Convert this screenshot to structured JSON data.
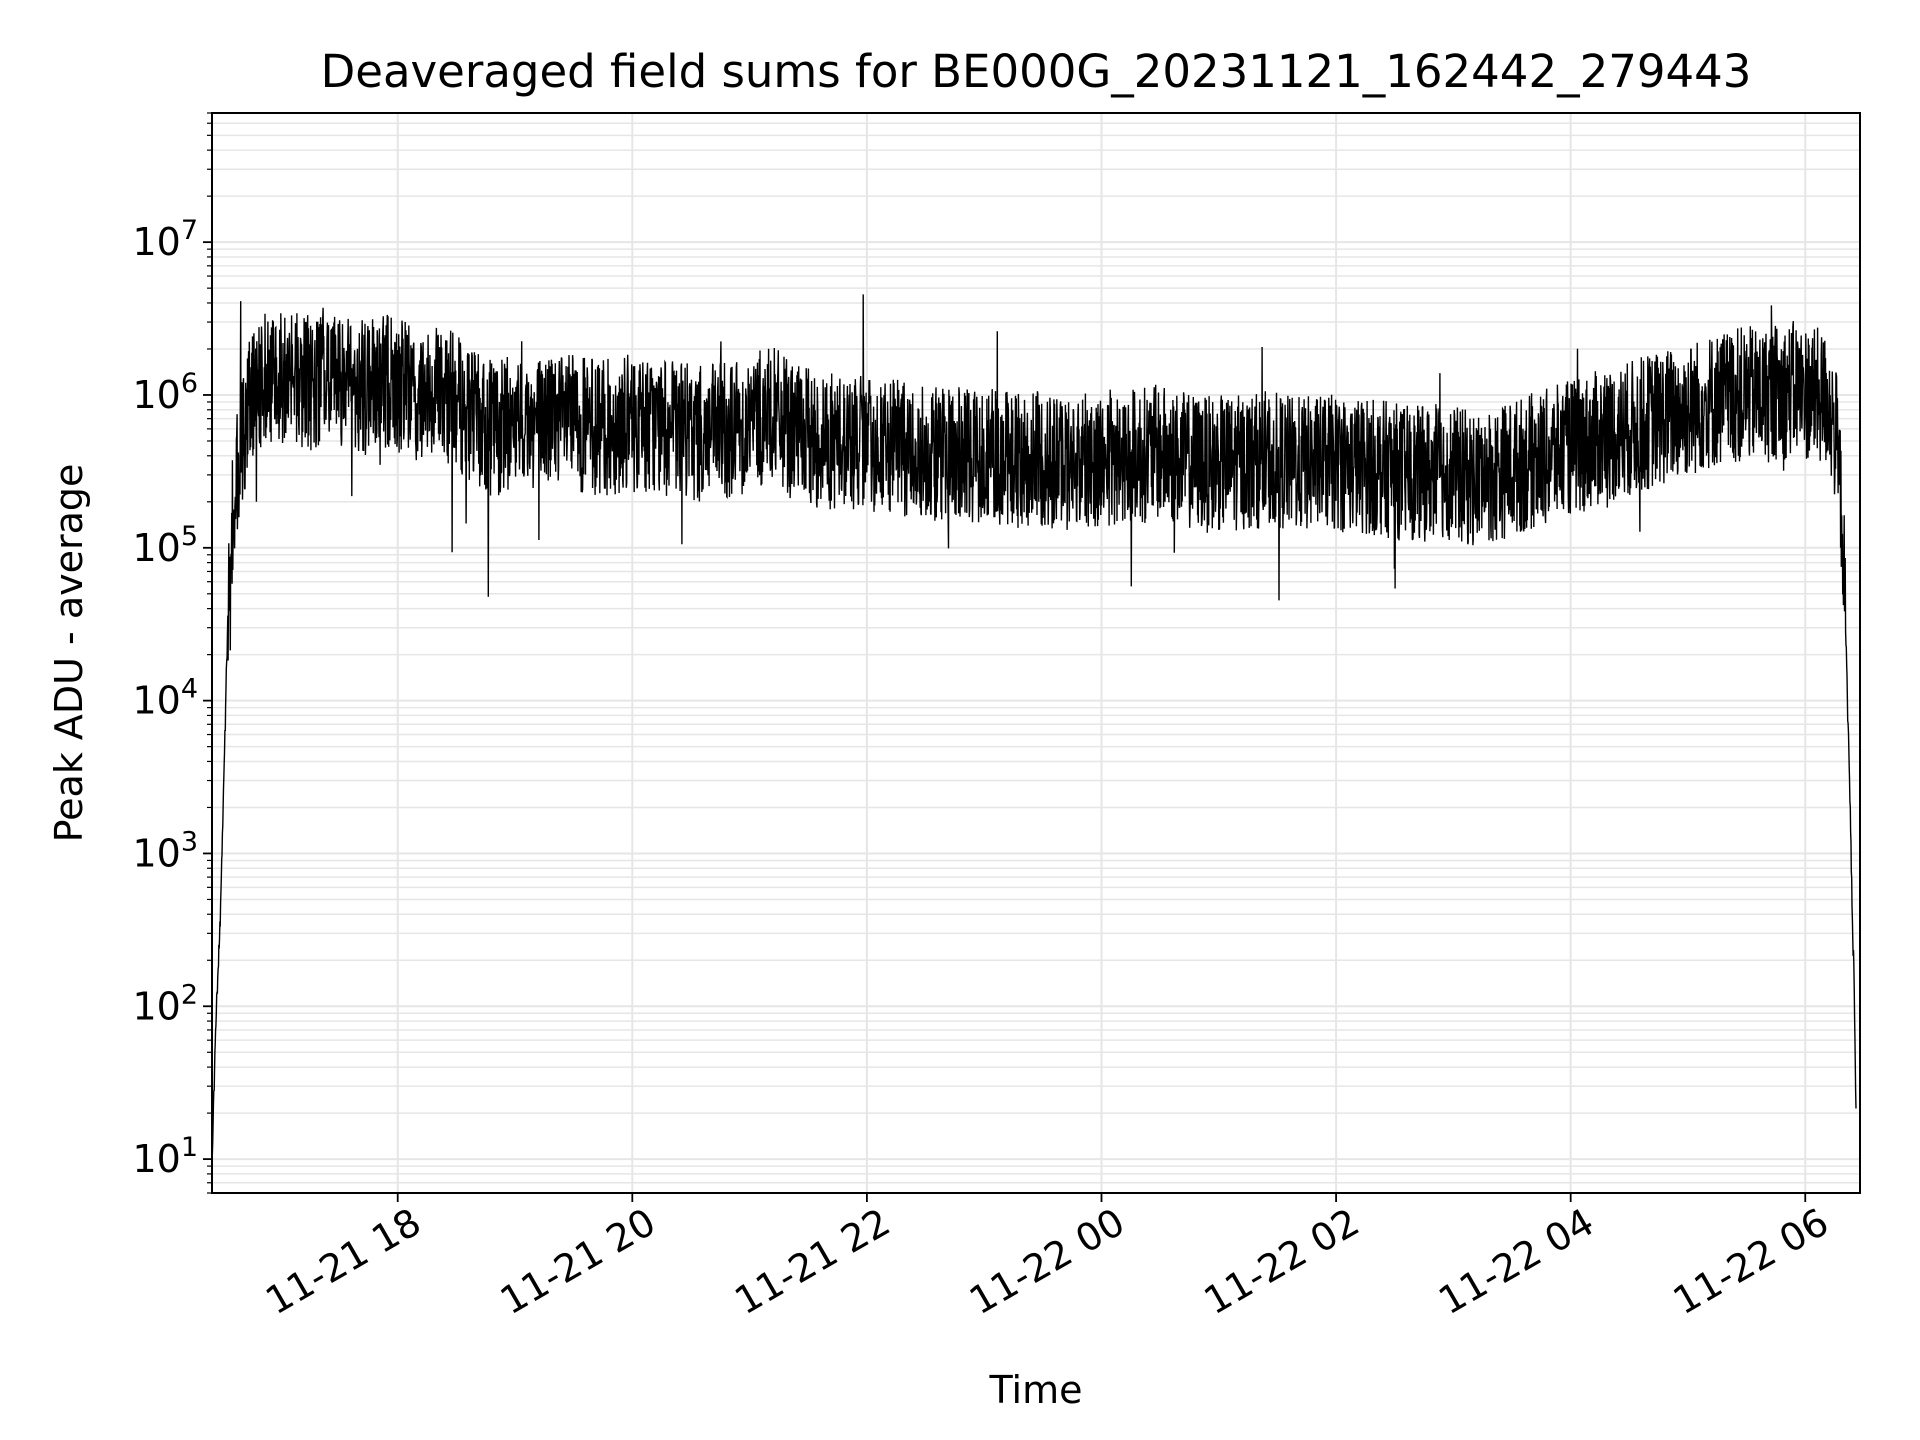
{
  "chart_data": {
    "type": "line",
    "title": "Deaveraged field sums for BE000G_20231121_162442_279443",
    "xlabel": "Time",
    "ylabel": "Peak ADU - average",
    "yscale": "log",
    "ylim": [
      6,
      70000000
    ],
    "xlim": [
      "2023-11-21 16:25",
      "2023-11-22 06:28"
    ],
    "grid": true,
    "line_color": "#000000",
    "grid_color": "#e6e6e6",
    "x_ticks": [
      {
        "t": "2023-11-21 18:00",
        "label": "11-21 18"
      },
      {
        "t": "2023-11-21 20:00",
        "label": "11-21 20"
      },
      {
        "t": "2023-11-21 22:00",
        "label": "11-21 22"
      },
      {
        "t": "2023-11-22 00:00",
        "label": "11-22 00"
      },
      {
        "t": "2023-11-22 02:00",
        "label": "11-22 02"
      },
      {
        "t": "2023-11-22 04:00",
        "label": "11-22 04"
      },
      {
        "t": "2023-11-22 06:00",
        "label": "11-22 06"
      }
    ],
    "y_ticks": [
      {
        "value": 10,
        "base": "10",
        "exp": "1"
      },
      {
        "value": 100,
        "base": "10",
        "exp": "2"
      },
      {
        "value": 1000,
        "base": "10",
        "exp": "3"
      },
      {
        "value": 10000,
        "base": "10",
        "exp": "4"
      },
      {
        "value": 100000,
        "base": "10",
        "exp": "5"
      },
      {
        "value": 1000000,
        "base": "10",
        "exp": "6"
      },
      {
        "value": 10000000,
        "base": "10",
        "exp": "7"
      }
    ],
    "series": [
      {
        "x": [
          "2023-11-21 16:25",
          "2023-11-21 16:27",
          "2023-11-21 16:29",
          "2023-11-21 16:31",
          "2023-11-21 16:33",
          "2023-11-21 16:35",
          "2023-11-21 16:38",
          "2023-11-21 16:41",
          "2023-11-21 16:44",
          "2023-11-21 16:48",
          "2023-11-21 16:52",
          "2023-11-21 16:57",
          "2023-11-21 17:05",
          "2023-11-21 17:15",
          "2023-11-21 17:25",
          "2023-11-21 17:35",
          "2023-11-21 17:45",
          "2023-11-21 17:55",
          "2023-11-21 18:05",
          "2023-11-21 18:15",
          "2023-11-21 18:20",
          "2023-11-21 18:30",
          "2023-11-21 18:45",
          "2023-11-21 19:00",
          "2023-11-21 19:15",
          "2023-11-21 19:30",
          "2023-11-21 19:45",
          "2023-11-21 19:55",
          "2023-11-21 20:05",
          "2023-11-21 20:20",
          "2023-11-21 20:35",
          "2023-11-21 20:50",
          "2023-11-21 21:00",
          "2023-11-21 21:05",
          "2023-11-21 21:12",
          "2023-11-21 21:20",
          "2023-11-21 21:35",
          "2023-11-21 21:50",
          "2023-11-21 22:05",
          "2023-11-21 22:20",
          "2023-11-21 22:35",
          "2023-11-21 22:50",
          "2023-11-21 23:00",
          "2023-11-21 23:15",
          "2023-11-21 23:30",
          "2023-11-21 23:45",
          "2023-11-22 00:00",
          "2023-11-22 00:15",
          "2023-11-22 00:30",
          "2023-11-22 00:40",
          "2023-11-22 00:55",
          "2023-11-22 01:10",
          "2023-11-22 01:25",
          "2023-11-22 01:40",
          "2023-11-22 01:55",
          "2023-11-22 02:10",
          "2023-11-22 02:25",
          "2023-11-22 02:40",
          "2023-11-22 02:55",
          "2023-11-22 03:10",
          "2023-11-22 03:20",
          "2023-11-22 03:35",
          "2023-11-22 03:50",
          "2023-11-22 04:00",
          "2023-11-22 04:15",
          "2023-11-22 04:30",
          "2023-11-22 04:45",
          "2023-11-22 05:00",
          "2023-11-22 05:10",
          "2023-11-22 05:25",
          "2023-11-22 05:40",
          "2023-11-22 05:55",
          "2023-11-22 06:05",
          "2023-11-22 06:12",
          "2023-11-22 06:16",
          "2023-11-22 06:19",
          "2023-11-22 06:21",
          "2023-11-22 06:23",
          "2023-11-22 06:24",
          "2023-11-22 06:25",
          "2023-11-22 06:26"
        ],
        "y": [
          10,
          80,
          300,
          3000,
          30000,
          120000,
          300000,
          600000,
          900000,
          1200000,
          1300000,
          1400000,
          1300000,
          1200000,
          1300000,
          1200000,
          1100000,
          1200000,
          1100000,
          1000000,
          1100000,
          900000,
          600000,
          650000,
          700000,
          650000,
          600000,
          650000,
          650000,
          600000,
          550000,
          600000,
          650000,
          700000,
          750000,
          600000,
          500000,
          500000,
          450000,
          450000,
          420000,
          400000,
          420000,
          380000,
          380000,
          360000,
          380000,
          400000,
          420000,
          380000,
          350000,
          360000,
          380000,
          350000,
          360000,
          350000,
          330000,
          300000,
          320000,
          280000,
          300000,
          350000,
          400000,
          450000,
          520000,
          600000,
          700000,
          800000,
          900000,
          1000000,
          1000000,
          1100000,
          1000000,
          900000,
          500000,
          150000,
          20000,
          2000,
          400,
          150,
          20
        ]
      }
    ]
  }
}
